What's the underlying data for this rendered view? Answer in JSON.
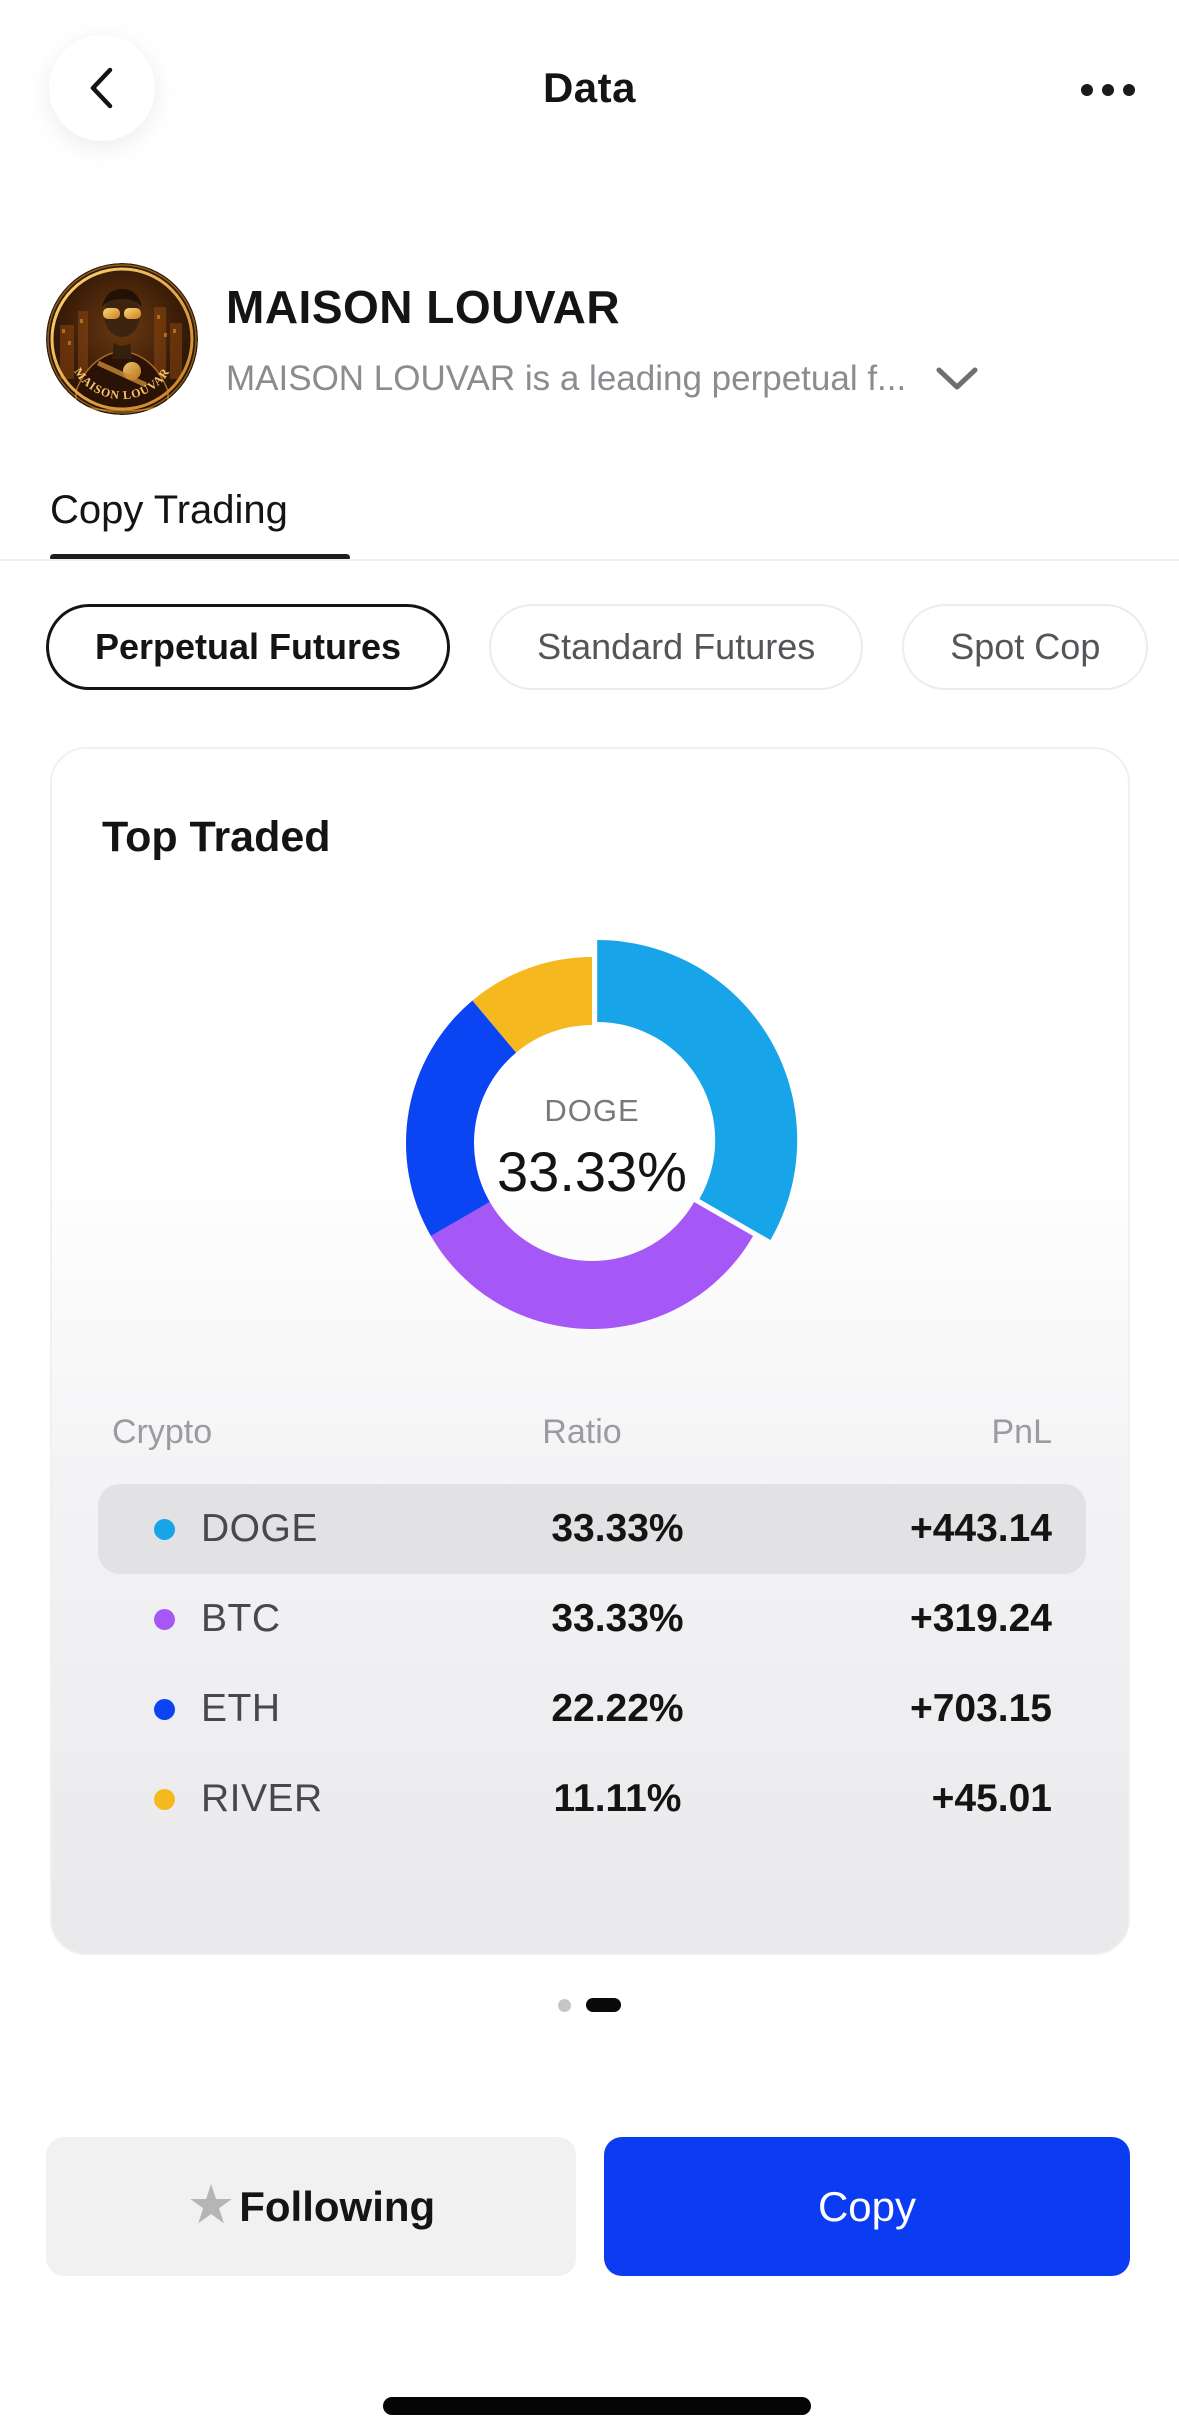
{
  "header": {
    "title": "Data"
  },
  "profile": {
    "name": "MAISON LOUVAR",
    "description": "MAISON LOUVAR is a leading perpetual f...",
    "avatar_text": "MAISON LOUVAR"
  },
  "tabs": {
    "active_label": "Copy Trading"
  },
  "filters": [
    {
      "label": "Perpetual Futures",
      "active": true
    },
    {
      "label": "Standard Futures",
      "active": false
    },
    {
      "label": "Spot Cop",
      "active": false
    }
  ],
  "card": {
    "title": "Top Traded"
  },
  "chart_data": {
    "type": "pie",
    "donut": true,
    "title": "Top Traded",
    "categories": [
      "DOGE",
      "BTC",
      "ETH",
      "RIVER"
    ],
    "values": [
      33.33,
      33.33,
      22.22,
      11.11
    ],
    "unit": "%",
    "colors": [
      "#17A4E8",
      "#A558F5",
      "#0B44F2",
      "#F6B81F"
    ],
    "start_angle": 0,
    "direction": "clockwise",
    "selected_index": 0,
    "center_label": {
      "category": "DOGE",
      "value": "33.33%"
    }
  },
  "table": {
    "headers": [
      "Crypto",
      "Ratio",
      "PnL"
    ],
    "rows": [
      {
        "name": "DOGE",
        "ratio": "33.33%",
        "pnl": "+443.14",
        "color": "#17A4E8",
        "highlighted": true
      },
      {
        "name": "BTC",
        "ratio": "33.33%",
        "pnl": "+319.24",
        "color": "#A558F5",
        "highlighted": false
      },
      {
        "name": "ETH",
        "ratio": "22.22%",
        "pnl": "+703.15",
        "color": "#0B44F2",
        "highlighted": false
      },
      {
        "name": "RIVER",
        "ratio": "11.11%",
        "pnl": "+45.01",
        "color": "#F6B81F",
        "highlighted": false
      }
    ]
  },
  "pagination": {
    "total": 2,
    "active_index": 1
  },
  "actions": {
    "following": {
      "label": "Following",
      "icon": "star"
    },
    "copy": {
      "label": "Copy"
    }
  },
  "colors": {
    "accent_blue": "#0c3cf1",
    "highlight_row": "#e2e2e5",
    "tab_underline": "#1d1d1f"
  }
}
